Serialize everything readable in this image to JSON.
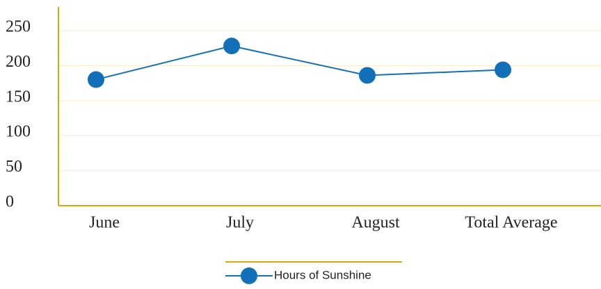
{
  "chart_data": {
    "type": "line",
    "categories": [
      "June",
      "July",
      "August",
      "Total Average"
    ],
    "series": [
      {
        "name": "Hours of Sunshine",
        "color": "#1170b8",
        "values": [
          180,
          228,
          186,
          194
        ]
      }
    ],
    "ylim": [
      0,
      250
    ],
    "yticks": [
      0,
      50,
      100,
      150,
      200,
      250
    ],
    "grid": true,
    "legend": "bottom"
  }
}
